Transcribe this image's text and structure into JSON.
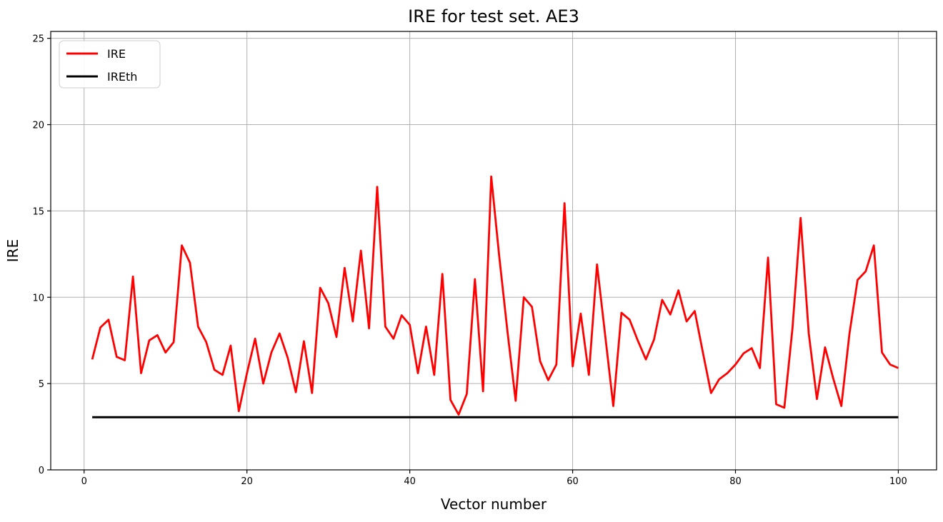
{
  "title": "IRE for test set. AE3",
  "chart_data": {
    "type": "line",
    "title": "IRE for test set. AE3",
    "xlabel": "Vector number",
    "ylabel": "IRE",
    "xlim": [
      -4.1,
      104.7
    ],
    "ylim": [
      0,
      25.4
    ],
    "xticks": [
      0,
      20,
      40,
      60,
      80,
      100
    ],
    "yticks": [
      0,
      5,
      10,
      15,
      20,
      25
    ],
    "grid": true,
    "legend": {
      "position": "upper-left",
      "entries": [
        {
          "label": "IRE",
          "color": "#ff0000"
        },
        {
          "label": "IREth",
          "color": "#000000"
        }
      ]
    },
    "series": [
      {
        "name": "IRE",
        "color": "#ff0000",
        "x": [
          1,
          2,
          3,
          4,
          5,
          6,
          7,
          8,
          9,
          10,
          11,
          12,
          13,
          14,
          15,
          16,
          17,
          18,
          19,
          20,
          21,
          22,
          23,
          24,
          25,
          26,
          27,
          28,
          29,
          30,
          31,
          32,
          33,
          34,
          35,
          36,
          37,
          38,
          39,
          40,
          41,
          42,
          43,
          44,
          45,
          46,
          47,
          48,
          49,
          50,
          51,
          52,
          53,
          54,
          55,
          56,
          57,
          58,
          59,
          60,
          61,
          62,
          63,
          64,
          65,
          66,
          67,
          68,
          69,
          70,
          71,
          72,
          73,
          74,
          75,
          76,
          77,
          78,
          79,
          80,
          81,
          82,
          83,
          84,
          85,
          86,
          87,
          88,
          89,
          90,
          91,
          92,
          93,
          94,
          95,
          96,
          97,
          98,
          99,
          100
        ],
        "y": [
          6.4,
          8.25,
          8.7,
          6.55,
          6.35,
          11.2,
          5.6,
          7.5,
          7.8,
          6.8,
          7.4,
          13.0,
          12.0,
          8.3,
          7.4,
          5.8,
          5.5,
          7.2,
          3.4,
          5.6,
          7.6,
          5.0,
          6.8,
          7.9,
          6.5,
          4.5,
          7.45,
          4.45,
          10.55,
          9.65,
          7.7,
          11.7,
          8.6,
          12.7,
          8.2,
          16.4,
          8.3,
          7.6,
          8.95,
          8.4,
          5.6,
          8.3,
          5.5,
          11.35,
          4.05,
          3.2,
          4.4,
          11.05,
          4.55,
          17.0,
          12.3,
          8.0,
          4.0,
          10.0,
          9.45,
          6.3,
          5.2,
          6.1,
          15.45,
          6.0,
          9.05,
          5.5,
          11.9,
          7.8,
          3.7,
          9.1,
          8.7,
          7.5,
          6.4,
          7.55,
          9.85,
          9.0,
          10.4,
          8.6,
          9.2,
          6.8,
          4.45,
          5.25,
          5.6,
          6.1,
          6.75,
          7.05,
          5.9,
          12.3,
          3.8,
          3.6,
          8.2,
          14.6,
          7.9,
          4.1,
          7.1,
          5.3,
          3.7,
          7.9,
          11.0,
          11.5,
          13.0,
          6.8,
          6.1,
          5.9
        ]
      },
      {
        "name": "IREth",
        "color": "#000000",
        "x": [
          1,
          100
        ],
        "y": [
          3.05,
          3.05
        ]
      }
    ]
  }
}
